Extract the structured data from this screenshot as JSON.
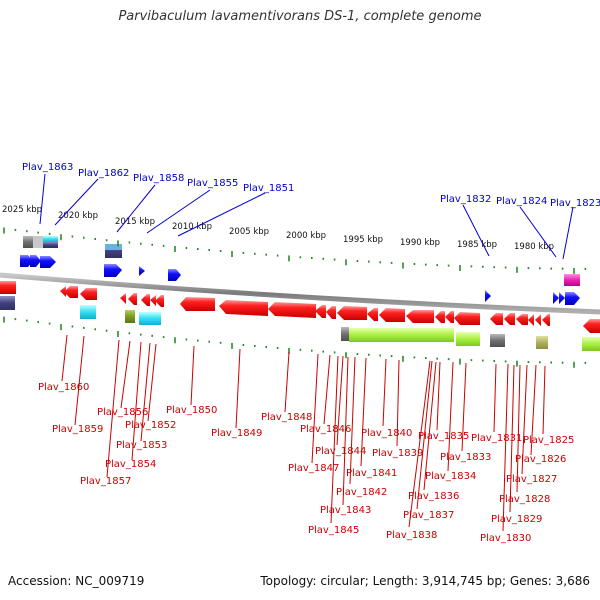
{
  "title": "Parvibaculum lavamentivorans DS-1, complete genome",
  "footer": {
    "accession": "Accession: NC_009719",
    "summary": "Topology: circular; Length: 3,914,745 bp; Genes: 3,686"
  },
  "colors": {
    "forward_gene": "#0000ee",
    "reverse_gene": "#ee0000",
    "forward_label": "#0000cc",
    "reverse_label": "#cc0000",
    "tick": "#2a8a2a",
    "backbone": "#8a8a8a"
  },
  "scale_labels": [
    "2025 kbp",
    "2020 kbp",
    "2015 kbp",
    "2010 kbp",
    "2005 kbp",
    "2000 kbp",
    "1995 kbp",
    "1990 kbp",
    "1985 kbp",
    "1980 kbp"
  ],
  "forward_labels": [
    "Plav_1863",
    "Plav_1862",
    "Plav_1858",
    "Plav_1855",
    "Plav_1851",
    "Plav_1832",
    "Plav_1824",
    "Plav_1823"
  ],
  "reverse_labels": [
    "Plav_1860",
    "Plav_1859",
    "Plav_1856",
    "Plav_1857",
    "Plav_1854",
    "Plav_1853",
    "Plav_1852",
    "Plav_1850",
    "Plav_1849",
    "Plav_1848",
    "Plav_1847",
    "Plav_1846",
    "Plav_1845",
    "Plav_1844",
    "Plav_1843",
    "Plav_1842",
    "Plav_1841",
    "Plav_1840",
    "Plav_1839",
    "Plav_1838",
    "Plav_1837",
    "Plav_1836",
    "Plav_1835",
    "Plav_1834",
    "Plav_1833",
    "Plav_1831",
    "Plav_1830",
    "Plav_1829",
    "Plav_1828",
    "Plav_1827",
    "Plav_1826",
    "Plav_1825"
  ]
}
